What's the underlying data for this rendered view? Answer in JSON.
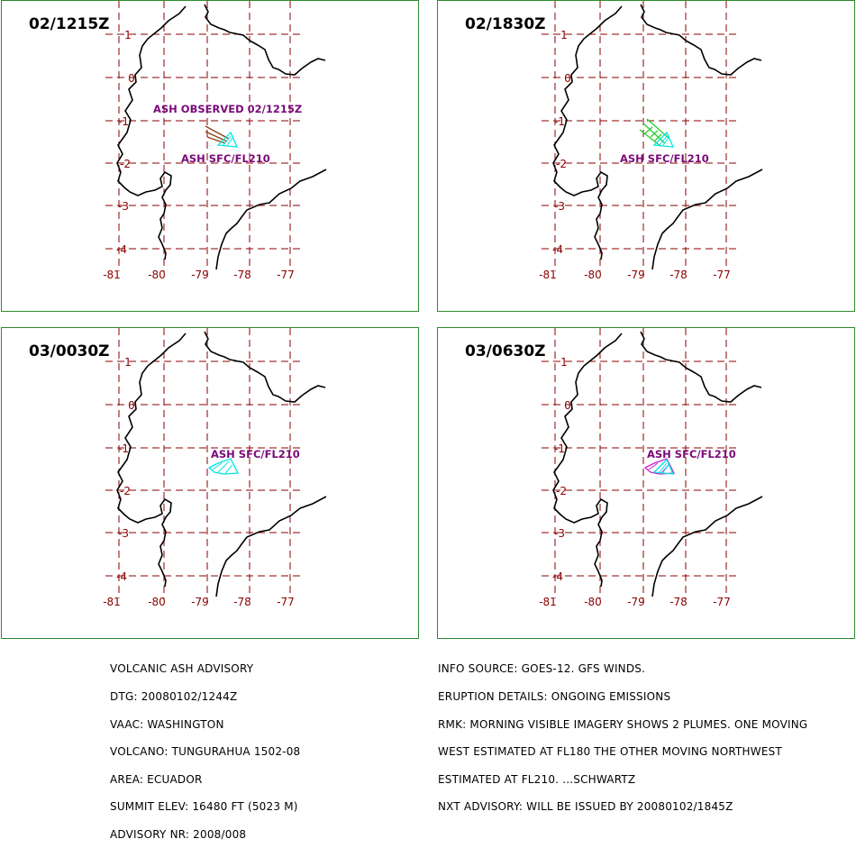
{
  "panels": [
    {
      "time": "02/1215Z",
      "labels": [
        "ASH OBSERVED 02/1215Z",
        "ASH SFC/FL210"
      ],
      "label_color": "#7a0a7a"
    },
    {
      "time": "02/1830Z",
      "labels": [
        "ASH SFC/FL210"
      ],
      "label_color": "#7a0a7a"
    },
    {
      "time": "03/0030Z",
      "labels": [
        "ASH SFC/FL210"
      ],
      "label_color": "#7a0a7a"
    },
    {
      "time": "03/0630Z",
      "labels": [
        "ASH SFC/FL210"
      ],
      "label_color": "#7a0a7a"
    }
  ],
  "map": {
    "lat_labels": [
      "1",
      "0",
      "-1",
      "-2",
      "-3",
      "-4"
    ],
    "lon_labels": [
      "-81",
      "-80",
      "-79",
      "-78",
      "-77"
    ],
    "grid_color": "#8b0000",
    "label_color": "#8b0000",
    "panel_border_color": "#2e8b2e"
  },
  "advisory_left": [
    "VOLCANIC ASH ADVISORY",
    "DTG: 20080102/1244Z",
    "VAAC: WASHINGTON",
    "VOLCANO: TUNGURAHUA 1502-08",
    "AREA: ECUADOR",
    "SUMMIT ELEV: 16480 FT (5023 M)",
    "ADVISORY NR: 2008/008"
  ],
  "advisory_right": [
    "INFO SOURCE: GOES-12. GFS WINDS.",
    "ERUPTION DETAILS: ONGOING EMISSIONS",
    "RMK: MORNING VISIBLE IMAGERY SHOWS 2 PLUMES. ONE MOVING",
    "WEST ESTIMATED AT FL180 THE OTHER MOVING NORTHWEST",
    "ESTIMATED AT FL210. ...SCHWARTZ",
    "NXT ADVISORY: WILL BE ISSUED BY 20080102/1845Z"
  ]
}
